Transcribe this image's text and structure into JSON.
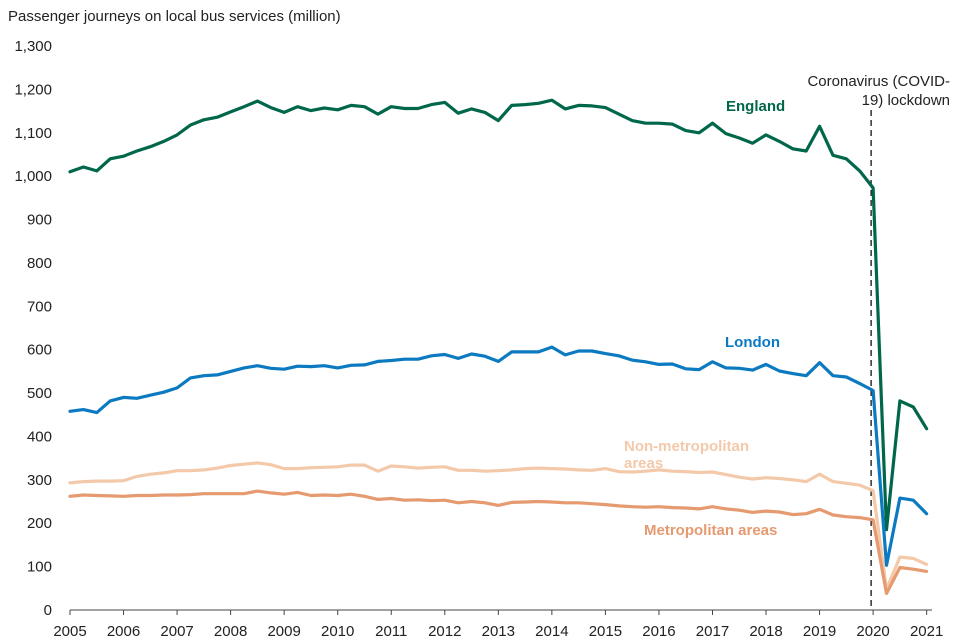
{
  "chart_data": {
    "type": "line",
    "title": "Passenger journeys on local bus services (million)",
    "xlabel": "",
    "ylabel": "",
    "ylim": [
      0,
      1300
    ],
    "yticks": [
      0,
      100,
      200,
      300,
      400,
      500,
      600,
      700,
      800,
      900,
      1000,
      1100,
      1200,
      1300
    ],
    "ytick_labels": [
      "0",
      "100",
      "200",
      "300",
      "400",
      "500",
      "600",
      "700",
      "800",
      "900",
      "1,000",
      "1,100",
      "1,200",
      "1,300"
    ],
    "xlim": [
      2005,
      2021.1
    ],
    "xticks": [
      "2005",
      "2006",
      "2007",
      "2008",
      "2009",
      "2010",
      "2011",
      "2012",
      "2013",
      "2014",
      "2015",
      "2016",
      "2017",
      "2018",
      "2019",
      "2020",
      "2021"
    ],
    "grid": false,
    "annotation": {
      "x": 2020,
      "lines": [
        "Coronavirus (COVID-",
        "19) lockdown"
      ]
    },
    "series": [
      {
        "name": "England",
        "color": "#00674b",
        "values": [
          [
            2005.0,
            1010
          ],
          [
            2005.25,
            1021
          ],
          [
            2005.5,
            1012
          ],
          [
            2005.75,
            1040
          ],
          [
            2006.0,
            1046
          ],
          [
            2006.25,
            1058
          ],
          [
            2006.5,
            1068
          ],
          [
            2006.75,
            1080
          ],
          [
            2007.0,
            1095
          ],
          [
            2007.25,
            1118
          ],
          [
            2007.5,
            1130
          ],
          [
            2007.75,
            1136
          ],
          [
            2008.0,
            1148
          ],
          [
            2008.25,
            1160
          ],
          [
            2008.5,
            1173
          ],
          [
            2008.75,
            1158
          ],
          [
            2009.0,
            1147
          ],
          [
            2009.25,
            1160
          ],
          [
            2009.5,
            1151
          ],
          [
            2009.75,
            1157
          ],
          [
            2010.0,
            1153
          ],
          [
            2010.25,
            1163
          ],
          [
            2010.5,
            1160
          ],
          [
            2010.75,
            1143
          ],
          [
            2011.0,
            1160
          ],
          [
            2011.25,
            1156
          ],
          [
            2011.5,
            1156
          ],
          [
            2011.75,
            1165
          ],
          [
            2012.0,
            1170
          ],
          [
            2012.25,
            1145
          ],
          [
            2012.5,
            1155
          ],
          [
            2012.75,
            1147
          ],
          [
            2013.0,
            1128
          ],
          [
            2013.25,
            1163
          ],
          [
            2013.5,
            1165
          ],
          [
            2013.75,
            1168
          ],
          [
            2014.0,
            1175
          ],
          [
            2014.25,
            1155
          ],
          [
            2014.5,
            1163
          ],
          [
            2014.75,
            1162
          ],
          [
            2015.0,
            1158
          ],
          [
            2015.25,
            1143
          ],
          [
            2015.5,
            1128
          ],
          [
            2015.75,
            1122
          ],
          [
            2016.0,
            1122
          ],
          [
            2016.25,
            1120
          ],
          [
            2016.5,
            1105
          ],
          [
            2016.75,
            1100
          ],
          [
            2017.0,
            1122
          ],
          [
            2017.25,
            1098
          ],
          [
            2017.5,
            1088
          ],
          [
            2017.75,
            1076
          ],
          [
            2018.0,
            1095
          ],
          [
            2018.25,
            1080
          ],
          [
            2018.5,
            1063
          ],
          [
            2018.75,
            1058
          ],
          [
            2019.0,
            1115
          ],
          [
            2019.25,
            1048
          ],
          [
            2019.5,
            1040
          ],
          [
            2019.75,
            1012
          ],
          [
            2020.0,
            973
          ],
          [
            2020.25,
            185
          ],
          [
            2020.5,
            482
          ],
          [
            2020.75,
            468
          ],
          [
            2021.0,
            418
          ]
        ]
      },
      {
        "name": "London",
        "color": "#0b7ac1",
        "values": [
          [
            2005.0,
            458
          ],
          [
            2005.25,
            462
          ],
          [
            2005.5,
            455
          ],
          [
            2005.75,
            482
          ],
          [
            2006.0,
            490
          ],
          [
            2006.25,
            488
          ],
          [
            2006.5,
            495
          ],
          [
            2006.75,
            502
          ],
          [
            2007.0,
            512
          ],
          [
            2007.25,
            535
          ],
          [
            2007.5,
            540
          ],
          [
            2007.75,
            542
          ],
          [
            2008.0,
            550
          ],
          [
            2008.25,
            558
          ],
          [
            2008.5,
            563
          ],
          [
            2008.75,
            557
          ],
          [
            2009.0,
            555
          ],
          [
            2009.25,
            562
          ],
          [
            2009.5,
            561
          ],
          [
            2009.75,
            563
          ],
          [
            2010.0,
            558
          ],
          [
            2010.25,
            564
          ],
          [
            2010.5,
            565
          ],
          [
            2010.75,
            573
          ],
          [
            2011.0,
            575
          ],
          [
            2011.25,
            578
          ],
          [
            2011.5,
            578
          ],
          [
            2011.75,
            586
          ],
          [
            2012.0,
            589
          ],
          [
            2012.25,
            580
          ],
          [
            2012.5,
            590
          ],
          [
            2012.75,
            585
          ],
          [
            2013.0,
            573
          ],
          [
            2013.25,
            595
          ],
          [
            2013.5,
            595
          ],
          [
            2013.75,
            595
          ],
          [
            2014.0,
            606
          ],
          [
            2014.25,
            588
          ],
          [
            2014.5,
            597
          ],
          [
            2014.75,
            597
          ],
          [
            2015.0,
            591
          ],
          [
            2015.25,
            586
          ],
          [
            2015.5,
            576
          ],
          [
            2015.75,
            572
          ],
          [
            2016.0,
            566
          ],
          [
            2016.25,
            567
          ],
          [
            2016.5,
            556
          ],
          [
            2016.75,
            554
          ],
          [
            2017.0,
            572
          ],
          [
            2017.25,
            558
          ],
          [
            2017.5,
            557
          ],
          [
            2017.75,
            553
          ],
          [
            2018.0,
            566
          ],
          [
            2018.25,
            551
          ],
          [
            2018.5,
            545
          ],
          [
            2018.75,
            540
          ],
          [
            2019.0,
            570
          ],
          [
            2019.25,
            540
          ],
          [
            2019.5,
            537
          ],
          [
            2019.75,
            522
          ],
          [
            2020.0,
            506
          ],
          [
            2020.25,
            103
          ],
          [
            2020.5,
            258
          ],
          [
            2020.75,
            253
          ],
          [
            2021.0,
            222
          ]
        ]
      },
      {
        "name": "Non-metropolitan areas",
        "label_lines": [
          "Non-metropolitan",
          "areas"
        ],
        "color": "#f3c9aa",
        "values": [
          [
            2005.0,
            293
          ],
          [
            2005.25,
            296
          ],
          [
            2005.5,
            297
          ],
          [
            2005.75,
            297
          ],
          [
            2006.0,
            298
          ],
          [
            2006.25,
            308
          ],
          [
            2006.5,
            313
          ],
          [
            2006.75,
            316
          ],
          [
            2007.0,
            321
          ],
          [
            2007.25,
            321
          ],
          [
            2007.5,
            323
          ],
          [
            2007.75,
            327
          ],
          [
            2008.0,
            333
          ],
          [
            2008.25,
            336
          ],
          [
            2008.5,
            339
          ],
          [
            2008.75,
            335
          ],
          [
            2009.0,
            326
          ],
          [
            2009.25,
            326
          ],
          [
            2009.5,
            328
          ],
          [
            2009.75,
            329
          ],
          [
            2010.0,
            330
          ],
          [
            2010.25,
            334
          ],
          [
            2010.5,
            334
          ],
          [
            2010.75,
            320
          ],
          [
            2011.0,
            332
          ],
          [
            2011.25,
            330
          ],
          [
            2011.5,
            327
          ],
          [
            2011.75,
            329
          ],
          [
            2012.0,
            330
          ],
          [
            2012.25,
            322
          ],
          [
            2012.5,
            322
          ],
          [
            2012.75,
            320
          ],
          [
            2013.0,
            321
          ],
          [
            2013.25,
            323
          ],
          [
            2013.5,
            326
          ],
          [
            2013.75,
            327
          ],
          [
            2014.0,
            326
          ],
          [
            2014.25,
            325
          ],
          [
            2014.5,
            323
          ],
          [
            2014.75,
            322
          ],
          [
            2015.0,
            326
          ],
          [
            2015.25,
            319
          ],
          [
            2015.5,
            318
          ],
          [
            2015.75,
            320
          ],
          [
            2016.0,
            323
          ],
          [
            2016.25,
            320
          ],
          [
            2016.5,
            319
          ],
          [
            2016.75,
            317
          ],
          [
            2017.0,
            318
          ],
          [
            2017.25,
            312
          ],
          [
            2017.5,
            306
          ],
          [
            2017.75,
            302
          ],
          [
            2018.0,
            305
          ],
          [
            2018.25,
            303
          ],
          [
            2018.5,
            300
          ],
          [
            2018.75,
            296
          ],
          [
            2019.0,
            313
          ],
          [
            2019.25,
            296
          ],
          [
            2019.5,
            292
          ],
          [
            2019.75,
            288
          ],
          [
            2020.0,
            275
          ],
          [
            2020.25,
            48
          ],
          [
            2020.5,
            122
          ],
          [
            2020.75,
            119
          ],
          [
            2021.0,
            105
          ]
        ]
      },
      {
        "name": "Metropolitan areas",
        "color": "#e59a6f",
        "values": [
          [
            2005.0,
            262
          ],
          [
            2005.25,
            265
          ],
          [
            2005.5,
            264
          ],
          [
            2005.75,
            263
          ],
          [
            2006.0,
            262
          ],
          [
            2006.25,
            264
          ],
          [
            2006.5,
            264
          ],
          [
            2006.75,
            265
          ],
          [
            2007.0,
            265
          ],
          [
            2007.25,
            266
          ],
          [
            2007.5,
            268
          ],
          [
            2007.75,
            268
          ],
          [
            2008.0,
            268
          ],
          [
            2008.25,
            268
          ],
          [
            2008.5,
            274
          ],
          [
            2008.75,
            270
          ],
          [
            2009.0,
            267
          ],
          [
            2009.25,
            271
          ],
          [
            2009.5,
            264
          ],
          [
            2009.75,
            265
          ],
          [
            2010.0,
            264
          ],
          [
            2010.25,
            267
          ],
          [
            2010.5,
            262
          ],
          [
            2010.75,
            255
          ],
          [
            2011.0,
            257
          ],
          [
            2011.25,
            253
          ],
          [
            2011.5,
            254
          ],
          [
            2011.75,
            252
          ],
          [
            2012.0,
            253
          ],
          [
            2012.25,
            247
          ],
          [
            2012.5,
            250
          ],
          [
            2012.75,
            247
          ],
          [
            2013.0,
            241
          ],
          [
            2013.25,
            248
          ],
          [
            2013.5,
            249
          ],
          [
            2013.75,
            250
          ],
          [
            2014.0,
            249
          ],
          [
            2014.25,
            247
          ],
          [
            2014.5,
            247
          ],
          [
            2014.75,
            245
          ],
          [
            2015.0,
            243
          ],
          [
            2015.25,
            240
          ],
          [
            2015.5,
            238
          ],
          [
            2015.75,
            237
          ],
          [
            2016.0,
            238
          ],
          [
            2016.25,
            236
          ],
          [
            2016.5,
            235
          ],
          [
            2016.75,
            233
          ],
          [
            2017.0,
            238
          ],
          [
            2017.25,
            233
          ],
          [
            2017.5,
            230
          ],
          [
            2017.75,
            225
          ],
          [
            2018.0,
            228
          ],
          [
            2018.25,
            226
          ],
          [
            2018.5,
            220
          ],
          [
            2018.75,
            222
          ],
          [
            2019.0,
            232
          ],
          [
            2019.25,
            219
          ],
          [
            2019.5,
            215
          ],
          [
            2019.75,
            213
          ],
          [
            2020.0,
            208
          ],
          [
            2020.25,
            38
          ],
          [
            2020.5,
            98
          ],
          [
            2020.75,
            94
          ],
          [
            2021.0,
            89
          ]
        ]
      }
    ]
  }
}
